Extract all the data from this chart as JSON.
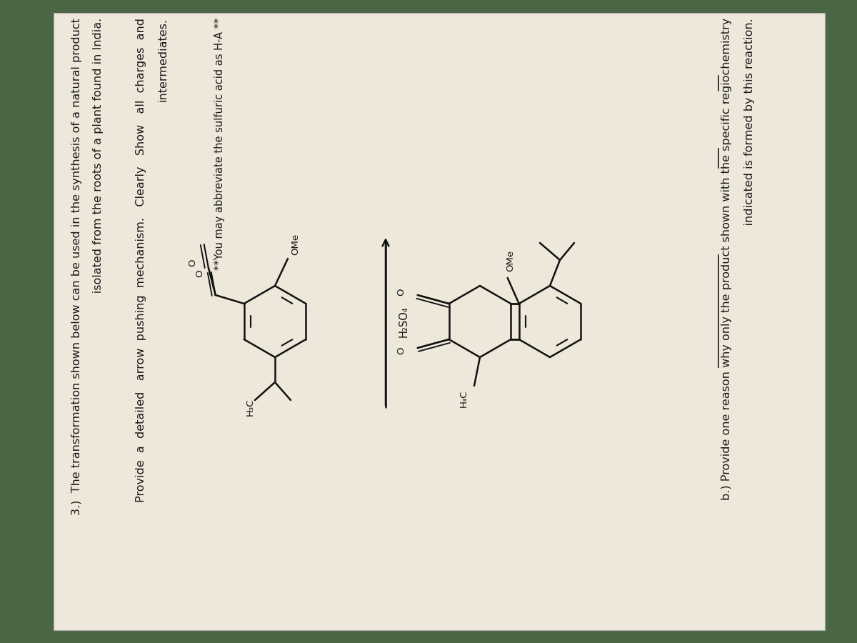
{
  "bg_color": "#4a6645",
  "paper_color": "#ede8da",
  "text_color": "#1a1a1a",
  "title_line1": "3.)  The transformation shown below can be used in the synthesis of a natural product",
  "title_line2": "      isolated from the roots of a plant found in India.",
  "instr_line1": "Provide  a  detailed   arrow  pushing  mechanism.   Clearly   Show   all  charges  and",
  "instr_line2": "intermediates.",
  "footnote": "**You may abbreviate the sulfuric acid as H-A **",
  "reagent": "H₂SO₄",
  "partb_line1": "b.) Provide one reason why only the product shown with the specific regiochemistry",
  "partb_line2": "    indicated is formed by this reaction.",
  "font_size": 11.5
}
